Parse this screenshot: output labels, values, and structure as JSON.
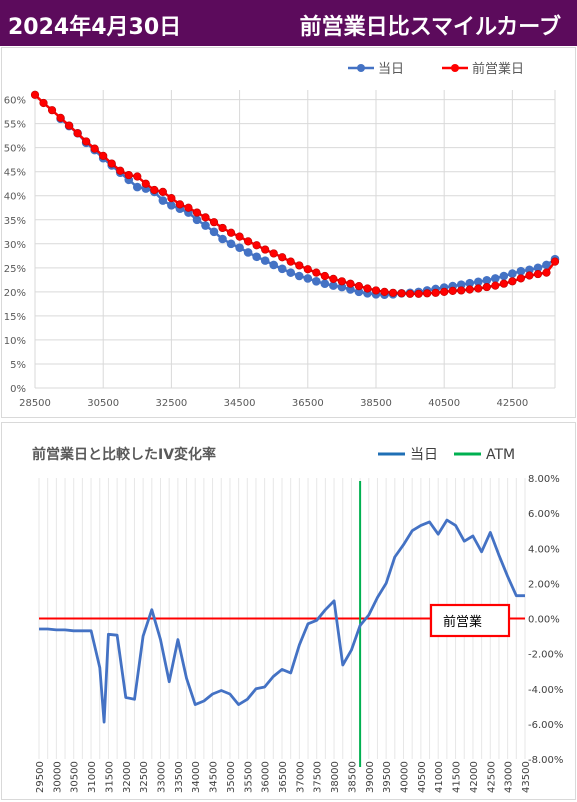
{
  "header": {
    "date": "2024年4月30日",
    "title": "前営業日比スマイルカーブ"
  },
  "colors": {
    "banner_bg": "#5c0b5c",
    "current": "#4472c4",
    "previous": "#ff0000",
    "atm": "#00b050"
  },
  "chart_data": [
    {
      "type": "line",
      "title": "",
      "legend": [
        "当日",
        "前営業日"
      ],
      "legend_position": "top-right",
      "xlim": [
        28500,
        43750
      ],
      "ylim": [
        0,
        0.62
      ],
      "x_ticks": [
        28500,
        30500,
        32500,
        34500,
        36500,
        38500,
        40500,
        42500
      ],
      "x_tick_labels": [
        "28500",
        "30500",
        "32500",
        "34500",
        "36500",
        "38500",
        "40500",
        "42500"
      ],
      "y_ticks": [
        0,
        0.05,
        0.1,
        0.15,
        0.2,
        0.25,
        0.3,
        0.35,
        0.4,
        0.45,
        0.5,
        0.55,
        0.6
      ],
      "y_tick_labels": [
        "0%",
        "5%",
        "10%",
        "15%",
        "20%",
        "25%",
        "30%",
        "35%",
        "40%",
        "45%",
        "50%",
        "55%",
        "60%"
      ],
      "grid": true,
      "x": [
        28500,
        28750,
        29000,
        29250,
        29500,
        29750,
        30000,
        30250,
        30500,
        30750,
        31000,
        31250,
        31500,
        31750,
        32000,
        32250,
        32500,
        32750,
        33000,
        33250,
        33500,
        33750,
        34000,
        34250,
        34500,
        34750,
        35000,
        35250,
        35500,
        35750,
        36000,
        36250,
        36500,
        36750,
        37000,
        37250,
        37500,
        37750,
        38000,
        38250,
        38500,
        38750,
        39000,
        39250,
        39500,
        39750,
        40000,
        40250,
        40500,
        40750,
        41000,
        41250,
        41500,
        41750,
        42000,
        42250,
        42500,
        42750,
        43000,
        43250,
        43500,
        43750
      ],
      "series": [
        {
          "name": "当日",
          "values": [
            null,
            null,
            null,
            0.56,
            0.545,
            0.53,
            0.51,
            0.495,
            0.478,
            0.463,
            0.448,
            0.433,
            0.418,
            0.415,
            0.408,
            0.39,
            0.38,
            0.373,
            0.365,
            0.35,
            0.338,
            0.325,
            0.31,
            0.3,
            0.292,
            0.282,
            0.273,
            0.265,
            0.256,
            0.248,
            0.24,
            0.233,
            0.228,
            0.222,
            0.217,
            0.213,
            0.21,
            0.205,
            0.2,
            0.197,
            0.195,
            0.194,
            0.195,
            0.197,
            0.198,
            0.2,
            0.203,
            0.206,
            0.209,
            0.212,
            0.215,
            0.218,
            0.221,
            0.224,
            0.228,
            0.233,
            0.238,
            0.243,
            0.246,
            0.25,
            0.256,
            0.268
          ]
        },
        {
          "name": "前営業日",
          "values": [
            0.61,
            0.593,
            0.578,
            0.562,
            0.546,
            0.53,
            0.513,
            0.498,
            0.483,
            0.467,
            0.452,
            0.443,
            0.44,
            0.425,
            0.412,
            0.408,
            0.395,
            0.382,
            0.375,
            0.365,
            0.355,
            0.345,
            0.333,
            0.323,
            0.315,
            0.305,
            0.297,
            0.288,
            0.28,
            0.272,
            0.263,
            0.255,
            0.247,
            0.24,
            0.233,
            0.227,
            0.222,
            0.217,
            0.212,
            0.207,
            0.203,
            0.2,
            0.198,
            0.197,
            0.196,
            0.196,
            0.197,
            0.198,
            0.2,
            0.202,
            0.203,
            0.205,
            0.207,
            0.21,
            0.213,
            0.217,
            0.222,
            0.228,
            0.234,
            0.237,
            0.24,
            0.263
          ]
        }
      ]
    },
    {
      "type": "line",
      "title": "前営業日と比較したIV変化率",
      "legend": [
        "当日",
        "ATM"
      ],
      "legend_position": "top-right",
      "xlim": [
        29500,
        43500
      ],
      "ylim": [
        -0.08,
        0.08
      ],
      "y_ticks": [
        -0.08,
        -0.06,
        -0.04,
        -0.02,
        0,
        0.02,
        0.04,
        0.06,
        0.08
      ],
      "y_tick_labels": [
        "-8.00%",
        "-6.00%",
        "-4.00%",
        "-2.00%",
        "0.00%",
        "2.00%",
        "4.00%",
        "6.00%",
        "8.00%"
      ],
      "x_tick_labels": [
        "29500",
        "30000",
        "30500",
        "31000",
        "31500",
        "32000",
        "32500",
        "33000",
        "33500",
        "34000",
        "34500",
        "35000",
        "35500",
        "36000",
        "36500",
        "37000",
        "37500",
        "38000",
        "38500",
        "39000",
        "39500",
        "40000",
        "40500",
        "41000",
        "41500",
        "42000",
        "42500",
        "43000",
        "43500"
      ],
      "atm_x": 38750,
      "annotation": "前営業",
      "x": [
        29500,
        29750,
        30000,
        30250,
        30500,
        30750,
        31000,
        31250,
        31375,
        31500,
        31750,
        32000,
        32250,
        32500,
        32750,
        33000,
        33250,
        33500,
        33750,
        34000,
        34250,
        34500,
        34750,
        35000,
        35250,
        35500,
        35750,
        36000,
        36250,
        36500,
        36750,
        37000,
        37250,
        37500,
        37750,
        38000,
        38250,
        38500,
        38750,
        39000,
        39250,
        39500,
        39750,
        40000,
        40250,
        40500,
        40750,
        41000,
        41250,
        41500,
        41750,
        42000,
        42250,
        42500,
        42750,
        43000,
        43250,
        43500
      ],
      "series": [
        {
          "name": "当日",
          "values": [
            -0.006,
            -0.006,
            -0.0065,
            -0.0065,
            -0.007,
            -0.007,
            -0.007,
            -0.028,
            -0.059,
            -0.009,
            -0.0095,
            -0.045,
            -0.046,
            -0.01,
            0.005,
            -0.012,
            -0.036,
            -0.012,
            -0.034,
            -0.049,
            -0.047,
            -0.043,
            -0.041,
            -0.043,
            -0.049,
            -0.046,
            -0.04,
            -0.039,
            -0.033,
            -0.029,
            -0.031,
            -0.015,
            -0.003,
            -0.001,
            0.005,
            0.01,
            -0.0265,
            -0.018,
            -0.004,
            0.002,
            0.012,
            0.02,
            0.035,
            0.042,
            0.05,
            0.053,
            0.055,
            0.048,
            0.056,
            0.053,
            0.044,
            0.047,
            0.038,
            0.049,
            0.036,
            0.024,
            0.013,
            0.013
          ]
        }
      ]
    }
  ]
}
